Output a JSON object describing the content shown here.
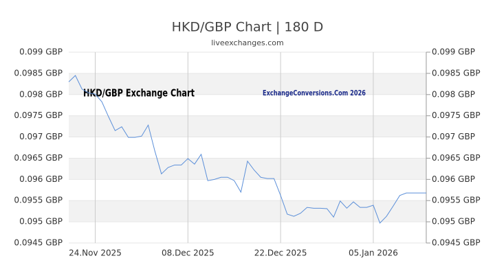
{
  "chart_data": {
    "type": "line",
    "title": "HKD/GBP Chart | 180 D",
    "subtitle": "liveexchanges.com",
    "annotations": [
      "HKD/GBP Exchange Chart",
      "ExchangeConversions.Com 2026"
    ],
    "x": [
      "2025-11-20",
      "2025-11-21",
      "2025-11-22",
      "2025-11-23",
      "2025-11-24",
      "2025-11-25",
      "2025-11-26",
      "2025-11-27",
      "2025-11-28",
      "2025-11-29",
      "2025-11-30",
      "2025-12-01",
      "2025-12-02",
      "2025-12-03",
      "2025-12-04",
      "2025-12-05",
      "2025-12-06",
      "2025-12-07",
      "2025-12-08",
      "2025-12-09",
      "2025-12-10",
      "2025-12-11",
      "2025-12-12",
      "2025-12-13",
      "2025-12-14",
      "2025-12-15",
      "2025-12-16",
      "2025-12-17",
      "2025-12-18",
      "2025-12-19",
      "2025-12-20",
      "2025-12-21",
      "2025-12-22",
      "2025-12-23",
      "2025-12-24",
      "2025-12-25",
      "2025-12-26",
      "2025-12-27",
      "2025-12-28",
      "2025-12-29",
      "2025-12-30",
      "2025-12-31",
      "2026-01-01",
      "2026-01-02",
      "2026-01-03",
      "2026-01-04",
      "2026-01-05",
      "2026-01-06",
      "2026-01-07",
      "2026-01-08",
      "2026-01-09",
      "2026-01-10",
      "2026-01-11",
      "2026-01-12",
      "2026-01-13"
    ],
    "series": [
      {
        "name": "HKD/GBP",
        "color": "#5b8fd9",
        "values": [
          0.0983,
          0.09845,
          0.09813,
          0.09804,
          0.09801,
          0.09783,
          0.09748,
          0.09715,
          0.09724,
          0.09699,
          0.09699,
          0.09702,
          0.09728,
          0.09667,
          0.09613,
          0.09628,
          0.09634,
          0.09634,
          0.09649,
          0.09636,
          0.09659,
          0.09597,
          0.096,
          0.09605,
          0.09605,
          0.09597,
          0.0957,
          0.09643,
          0.09622,
          0.09605,
          0.09602,
          0.09602,
          0.09562,
          0.09518,
          0.09513,
          0.0952,
          0.09534,
          0.09532,
          0.09532,
          0.09531,
          0.09511,
          0.09549,
          0.09532,
          0.09547,
          0.09534,
          0.09534,
          0.09539,
          0.09497,
          0.09513,
          0.09537,
          0.09562,
          0.09568,
          0.09568,
          0.09568,
          0.09568
        ]
      }
    ],
    "xlim": [
      "2025-11-20",
      "2026-01-13"
    ],
    "xticks": [
      {
        "value": "2025-11-24",
        "label": "24.Nov 2025"
      },
      {
        "value": "2025-12-08",
        "label": "08.Dec 2025"
      },
      {
        "value": "2025-12-22",
        "label": "22.Dec 2025"
      },
      {
        "value": "2026-01-05",
        "label": "05.Jan 2026"
      }
    ],
    "ylim": [
      0.0945,
      0.099
    ],
    "yticks": [
      {
        "value": 0.099,
        "label": "0.099 GBP"
      },
      {
        "value": 0.0985,
        "label": "0.0985 GBP"
      },
      {
        "value": 0.098,
        "label": "0.098 GBP"
      },
      {
        "value": 0.0975,
        "label": "0.0975 GBP"
      },
      {
        "value": 0.097,
        "label": "0.097 GBP"
      },
      {
        "value": 0.0965,
        "label": "0.0965 GBP"
      },
      {
        "value": 0.096,
        "label": "0.096 GBP"
      },
      {
        "value": 0.0955,
        "label": "0.0955 GBP"
      },
      {
        "value": 0.095,
        "label": "0.095 GBP"
      },
      {
        "value": 0.0945,
        "label": "0.0945 GBP"
      }
    ],
    "grid": true,
    "bands": true
  }
}
